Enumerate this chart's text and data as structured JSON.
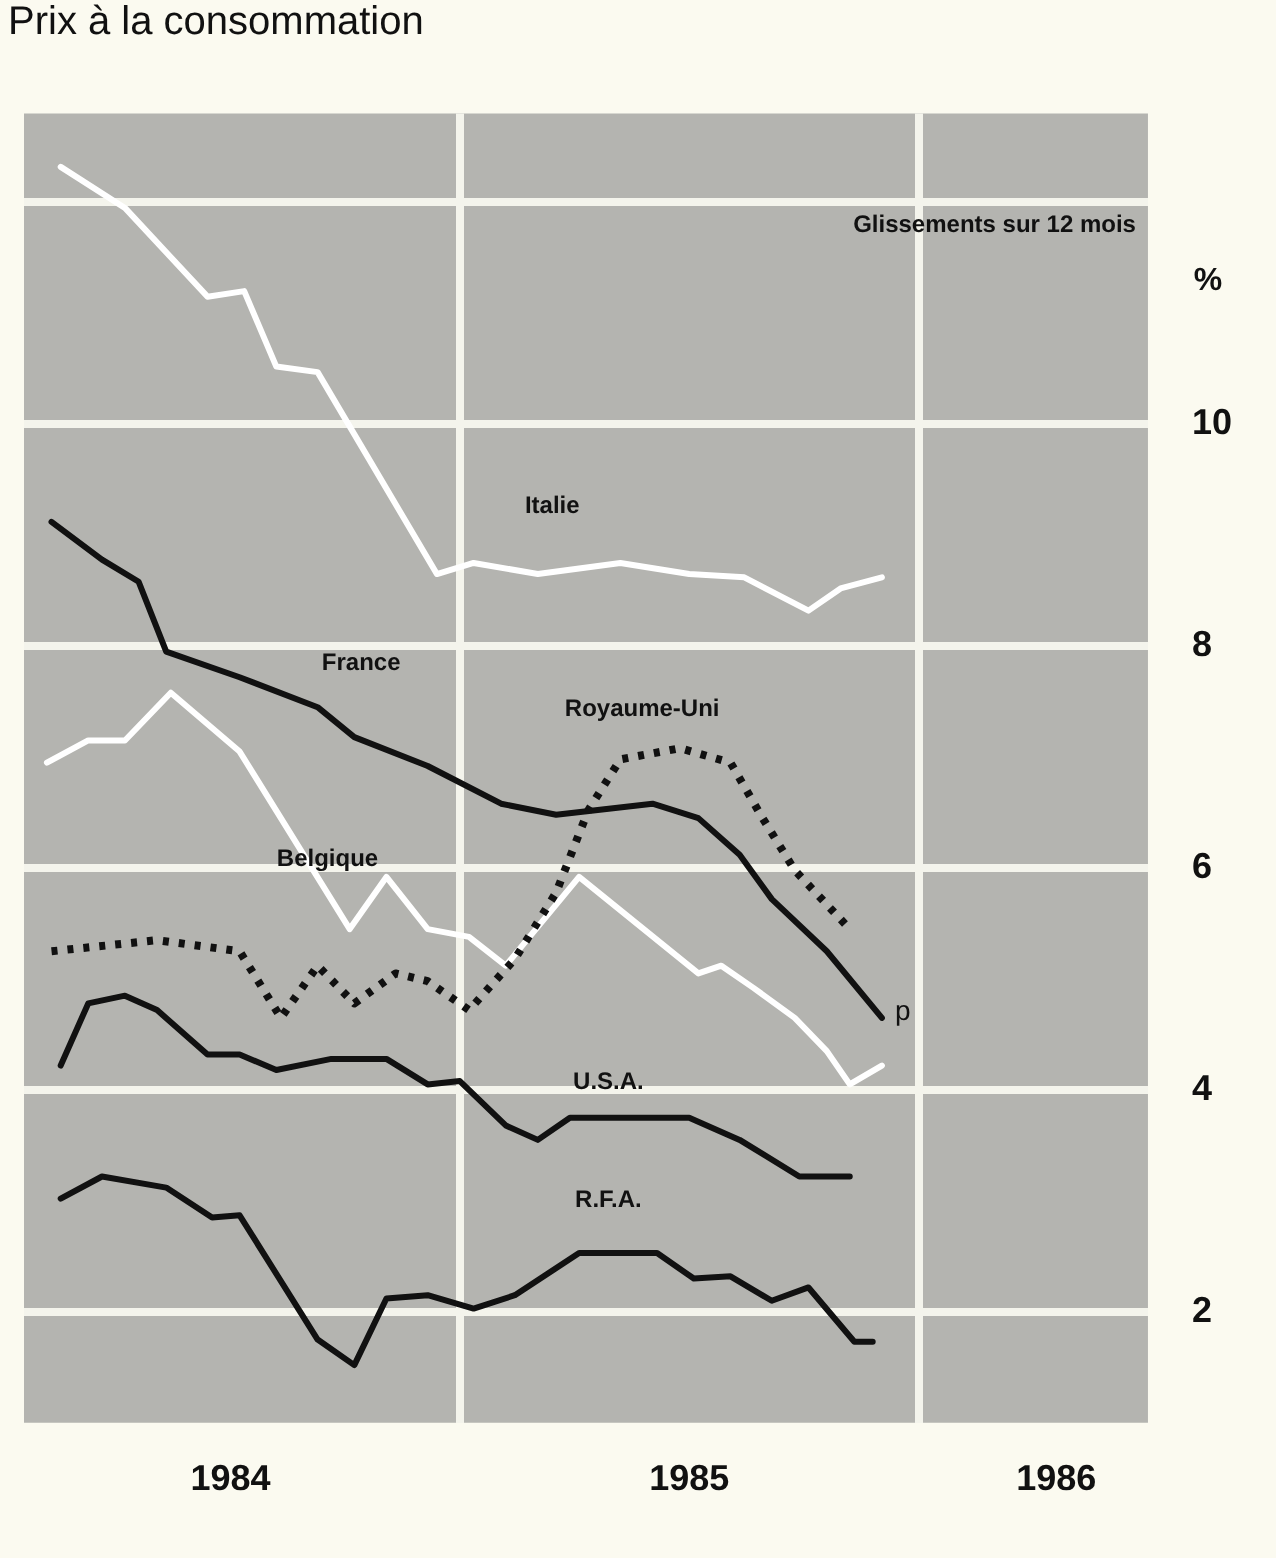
{
  "chart_data": {
    "type": "line",
    "title": "Prix à la consommation",
    "ylabel": "%",
    "annotations": [
      "Glissements sur 12 mois",
      {
        "text": "p",
        "x": 1985.94,
        "y": 4.7
      }
    ],
    "xlim": [
      1984.05,
      1986.5
    ],
    "xticks": [
      {
        "value": 1984.5,
        "label": "1984"
      },
      {
        "value": 1985,
        "label": null
      },
      {
        "value": 1985.5,
        "label": "1985"
      },
      {
        "value": 1986,
        "label": null
      },
      {
        "value": 1986.3,
        "label": "1986"
      }
    ],
    "ylim": [
      1,
      12.8
    ],
    "yticks": [
      2,
      4,
      6,
      8,
      10,
      {
        "value": 12,
        "label": null
      }
    ],
    "grid": true,
    "legend": false,
    "marker": "none",
    "line_style": "solid",
    "series": [
      {
        "name": "Italie",
        "color": "#ffffff",
        "x": [
          1984.13,
          1984.27,
          1984.45,
          1984.53,
          1984.6,
          1984.69,
          1984.95,
          1985.03,
          1985.17,
          1985.35,
          1985.5,
          1985.62,
          1985.76,
          1985.83,
          1985.92
        ],
        "values": [
          12.32,
          11.95,
          11.15,
          11.2,
          10.52,
          10.47,
          8.65,
          8.75,
          8.65,
          8.75,
          8.65,
          8.62,
          8.32,
          8.52,
          8.62
        ]
      },
      {
        "name": "France",
        "color": "#111111",
        "x": [
          1984.11,
          1984.22,
          1984.3,
          1984.36,
          1984.52,
          1984.69,
          1984.77,
          1984.93,
          1985.09,
          1985.21,
          1985.42,
          1985.52,
          1985.61,
          1985.68,
          1985.8,
          1985.92
        ],
        "values": [
          9.12,
          8.78,
          8.58,
          7.95,
          7.72,
          7.45,
          7.18,
          6.92,
          6.58,
          6.48,
          6.58,
          6.45,
          6.12,
          5.72,
          5.25,
          4.65
        ]
      },
      {
        "name": "Royaume-Uni",
        "color": "#111111",
        "line_style": "dotted",
        "x": [
          1984.11,
          1984.34,
          1984.52,
          1984.61,
          1984.69,
          1984.77,
          1984.86,
          1984.93,
          1985.02,
          1985.12,
          1985.21,
          1985.28,
          1985.35,
          1985.48,
          1985.59,
          1985.66,
          1985.73,
          1985.85
        ],
        "values": [
          5.25,
          5.35,
          5.25,
          4.65,
          5.12,
          4.78,
          5.05,
          4.98,
          4.72,
          5.18,
          5.78,
          6.52,
          6.98,
          7.08,
          6.95,
          6.45,
          5.98,
          5.45
        ]
      },
      {
        "name": "Belgique",
        "color": "#ffffff",
        "x": [
          1984.1,
          1984.19,
          1984.27,
          1984.37,
          1984.52,
          1984.76,
          1984.84,
          1984.93,
          1985.02,
          1985.1,
          1985.26,
          1985.52,
          1985.57,
          1985.64,
          1985.73,
          1985.8,
          1985.85,
          1985.92
        ],
        "values": [
          6.95,
          7.15,
          7.15,
          7.58,
          7.05,
          5.45,
          5.92,
          5.45,
          5.38,
          5.12,
          5.92,
          5.05,
          5.12,
          4.92,
          4.65,
          4.35,
          4.05,
          4.22
        ]
      },
      {
        "name": "U.S.A.",
        "color": "#111111",
        "x": [
          1984.13,
          1984.19,
          1984.27,
          1984.34,
          1984.45,
          1984.52,
          1984.6,
          1984.72,
          1984.84,
          1984.93,
          1985,
          1985.1,
          1985.17,
          1985.24,
          1985.5,
          1985.61,
          1985.74,
          1985.85
        ],
        "values": [
          4.22,
          4.78,
          4.85,
          4.72,
          4.32,
          4.32,
          4.18,
          4.28,
          4.28,
          4.05,
          4.08,
          3.68,
          3.55,
          3.75,
          3.75,
          3.55,
          3.22,
          3.22
        ]
      },
      {
        "name": "R.F.A.",
        "color": "#111111",
        "x": [
          1984.13,
          1984.22,
          1984.36,
          1984.46,
          1984.52,
          1984.69,
          1984.77,
          1984.84,
          1984.93,
          1985.03,
          1985.12,
          1985.26,
          1985.43,
          1985.51,
          1985.59,
          1985.68,
          1985.76,
          1985.86,
          1985.9
        ],
        "values": [
          3.02,
          3.22,
          3.12,
          2.85,
          2.87,
          1.75,
          1.52,
          2.12,
          2.15,
          2.03,
          2.15,
          2.53,
          2.53,
          2.3,
          2.32,
          2.1,
          2.22,
          1.73,
          1.73
        ]
      }
    ]
  }
}
